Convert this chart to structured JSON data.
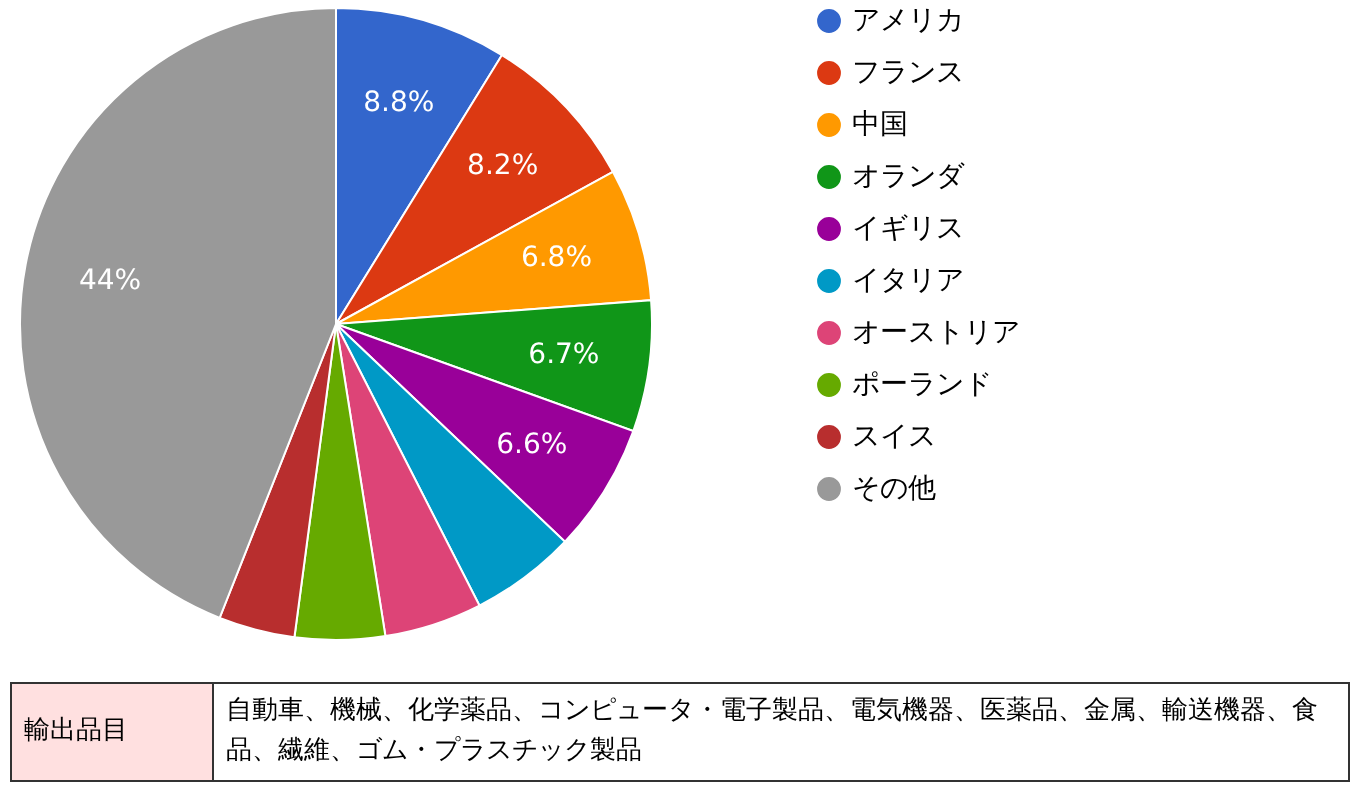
{
  "chart_data": {
    "type": "pie",
    "categories": [
      "アメリカ",
      "フランス",
      "中国",
      "オランダ",
      "イギリス",
      "イタリア",
      "オーストリア",
      "ポーランド",
      "スイス",
      "その他"
    ],
    "values": [
      8.8,
      8.2,
      6.8,
      6.7,
      6.6,
      5.4,
      5.0,
      4.6,
      3.9,
      44
    ],
    "value_labels": [
      "8.8%",
      "8.2%",
      "6.8%",
      "6.7%",
      "6.6%",
      null,
      null,
      null,
      null,
      "44%"
    ],
    "colors": [
      "#3366cc",
      "#dc3912",
      "#ff9900",
      "#109618",
      "#990099",
      "#0099c6",
      "#dd4477",
      "#66aa00",
      "#b82e2e",
      "#999999"
    ],
    "legend": "right",
    "annotations": [
      "輸出品目",
      "自動車、機械、化学薬品、コンピュータ・電子製品、電気機器、医薬品、金属、輸送機器、食品、繊維、ゴム・プラスチック製品"
    ]
  }
}
